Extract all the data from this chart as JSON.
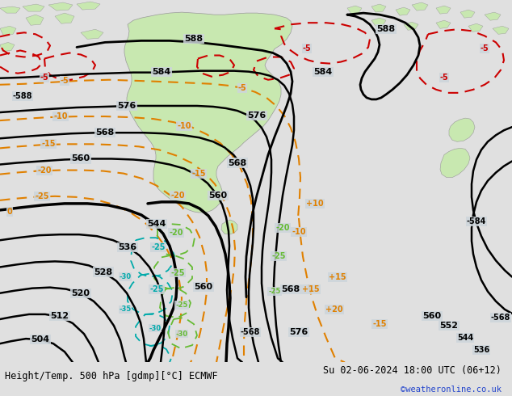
{
  "title_left": "Height/Temp. 500 hPa [gdmp][°C] ECMWF",
  "title_right": "Su 02-06-2024 18:00 UTC (06+12)",
  "credit": "©weatheronline.co.uk",
  "bg_color": "#cdd5db",
  "land_color": "#c8e8b0",
  "land_edge": "#999999",
  "footer_bg": "#e0e0e0",
  "figsize": [
    6.34,
    4.9
  ],
  "dpi": 100,
  "contour_color": "#000000",
  "isotherm_orange": "#e08000",
  "isotherm_red": "#cc0000",
  "isotherm_cyan": "#00aaaa",
  "isotherm_green": "#66bb33"
}
